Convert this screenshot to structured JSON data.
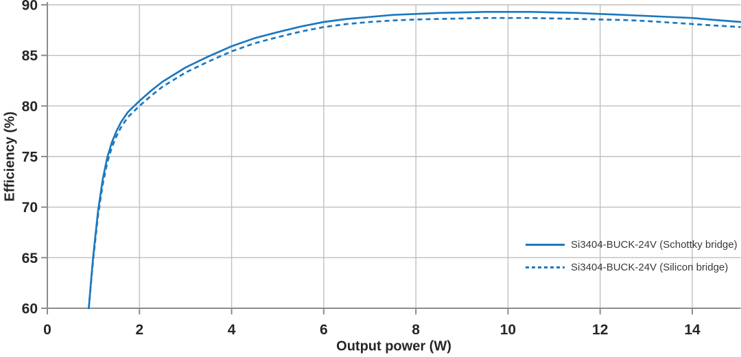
{
  "chart_data": {
    "type": "line",
    "title": "",
    "xlabel": "Output power (W)",
    "ylabel": "Efficiency (%)",
    "xlim": [
      0,
      15.05
    ],
    "ylim": [
      60,
      90
    ],
    "x_ticks": [
      0,
      2,
      4,
      6,
      8,
      10,
      12,
      14
    ],
    "y_ticks": [
      60,
      65,
      70,
      75,
      80,
      85,
      90
    ],
    "grid": true,
    "legend_position": "inside-right",
    "x": [
      0.9,
      0.95,
      1,
      1.1,
      1.2,
      1.3,
      1.4,
      1.5,
      1.6,
      1.75,
      2,
      2.25,
      2.5,
      2.75,
      3,
      3.25,
      3.5,
      3.75,
      4,
      4.5,
      5,
      5.5,
      6,
      6.5,
      7,
      7.5,
      8,
      8.5,
      9,
      9.5,
      10,
      10.5,
      11,
      11.5,
      12,
      12.5,
      13,
      13.5,
      14,
      14.5,
      15.05
    ],
    "series": [
      {
        "name": "Si3404-BUCK-24V (Schottky bridge)",
        "style": "solid",
        "color": "#1b78be",
        "values": [
          60,
          62.8,
          65.3,
          69.6,
          72.7,
          74.9,
          76.4,
          77.5,
          78.4,
          79.4,
          80.5,
          81.5,
          82.4,
          83.1,
          83.8,
          84.35,
          84.9,
          85.4,
          85.9,
          86.7,
          87.3,
          87.85,
          88.3,
          88.6,
          88.8,
          89,
          89.1,
          89.2,
          89.25,
          89.3,
          89.3,
          89.3,
          89.25,
          89.2,
          89.1,
          89,
          88.9,
          88.8,
          88.7,
          88.5,
          88.3
        ]
      },
      {
        "name": "Si3404-BUCK-24V (Silicon bridge)",
        "style": "dashed",
        "color": "#1b78be",
        "values": [
          60,
          62.6,
          65,
          69.2,
          72.2,
          74.4,
          75.9,
          77,
          77.9,
          78.9,
          80,
          81,
          81.9,
          82.6,
          83.3,
          83.85,
          84.4,
          84.9,
          85.4,
          86.2,
          86.8,
          87.35,
          87.8,
          88.1,
          88.3,
          88.45,
          88.55,
          88.6,
          88.65,
          88.7,
          88.7,
          88.7,
          88.65,
          88.6,
          88.55,
          88.5,
          88.4,
          88.25,
          88.1,
          87.95,
          87.8
        ]
      }
    ]
  },
  "colors": {
    "line_blue": "#1b78be",
    "gridline": "#bfbfbf",
    "axis": "#8c8c8c",
    "tick_text": "#262626",
    "legend_text": "#3a3a3a",
    "background": "#ffffff"
  }
}
